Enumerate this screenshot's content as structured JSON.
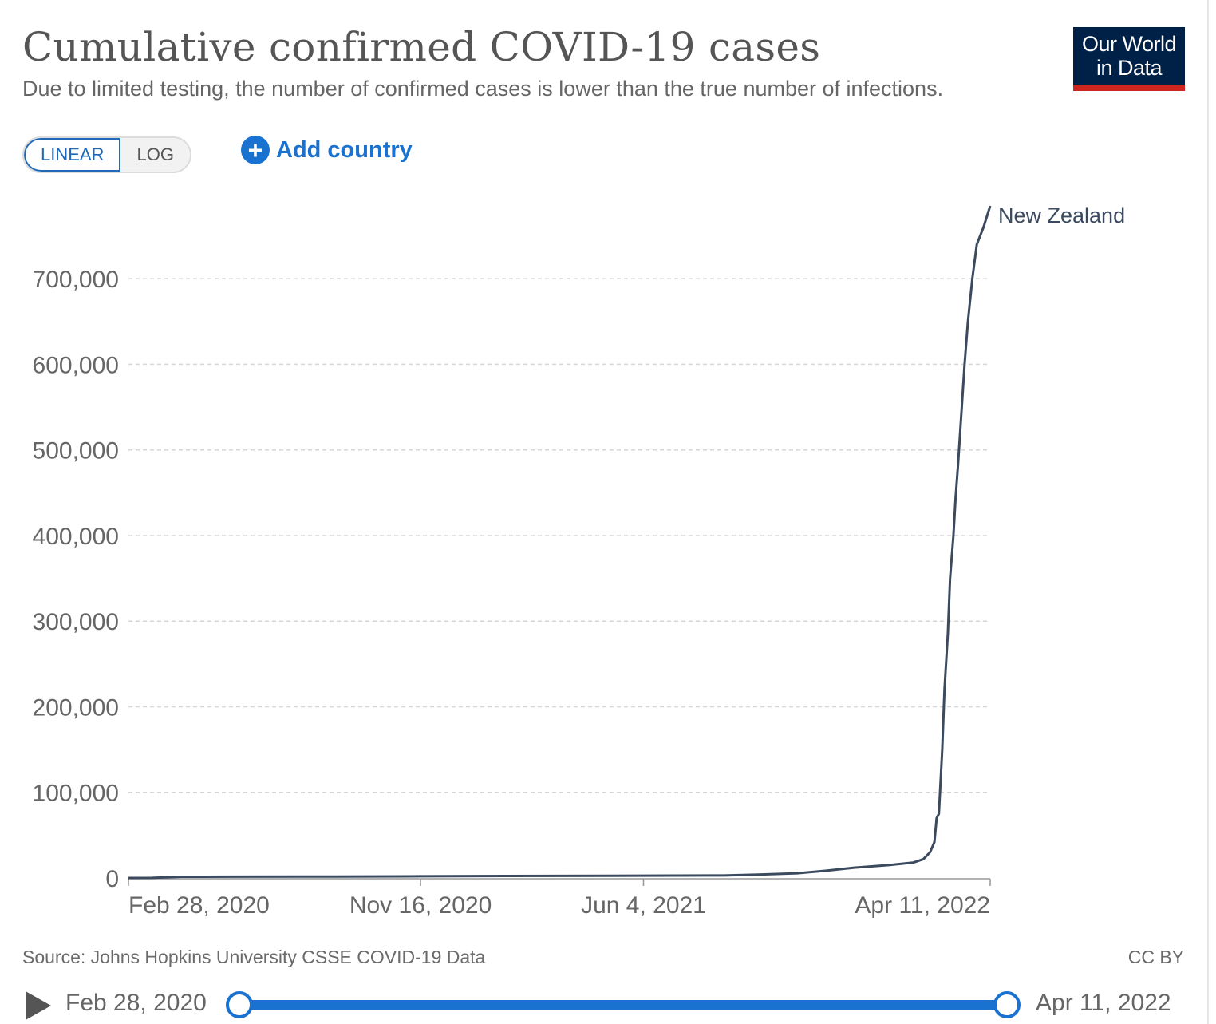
{
  "header": {
    "title": "Cumulative confirmed COVID-19 cases",
    "subtitle": "Due to limited testing, the number of confirmed cases is lower than the true number of infections.",
    "logo_line1": "Our World",
    "logo_line2": "in Data"
  },
  "controls": {
    "linear_label": "LINEAR",
    "log_label": "LOG",
    "active_scale": "LINEAR",
    "add_country_label": "Add country",
    "add_icon": "plus-circle-icon"
  },
  "footer": {
    "source": "Source: Johns Hopkins University CSSE COVID-19 Data",
    "license": "CC BY"
  },
  "timeline": {
    "start_label": "Feb 28, 2020",
    "end_label": "Apr 11, 2022",
    "play_icon": "play-icon",
    "range_start_fraction": 0,
    "range_end_fraction": 1
  },
  "colors": {
    "series": "#3b4a5e",
    "accent": "#1a72d0",
    "logo_bg": "#002147",
    "logo_stripe": "#ce261e"
  },
  "chart_data": {
    "type": "line",
    "title": "Cumulative confirmed COVID-19 cases",
    "xlabel": "",
    "ylabel": "",
    "xlim": [
      "2020-02-28",
      "2022-04-11"
    ],
    "ylim": [
      0,
      785000
    ],
    "y_ticks": [
      0,
      100000,
      200000,
      300000,
      400000,
      500000,
      600000,
      700000
    ],
    "y_tick_labels": [
      "0",
      "100,000",
      "200,000",
      "300,000",
      "400,000",
      "500,000",
      "600,000",
      "700,000"
    ],
    "x_tick_dates": [
      "2020-02-28",
      "2020-11-16",
      "2021-06-04",
      "2022-04-11"
    ],
    "x_tick_labels": [
      "Feb 28, 2020",
      "Nov 16, 2020",
      "Jun 4, 2021",
      "Apr 11, 2022"
    ],
    "grid": "horizontal dashed",
    "legend": "inline label at line end",
    "series": [
      {
        "name": "New Zealand",
        "color": "#3b4a5e",
        "points": [
          [
            "2020-02-28",
            0
          ],
          [
            "2020-03-20",
            50
          ],
          [
            "2020-04-15",
            1400
          ],
          [
            "2020-06-01",
            1500
          ],
          [
            "2020-09-01",
            1700
          ],
          [
            "2020-11-16",
            2000
          ],
          [
            "2021-02-01",
            2300
          ],
          [
            "2021-06-04",
            2700
          ],
          [
            "2021-08-15",
            2900
          ],
          [
            "2021-09-15",
            4000
          ],
          [
            "2021-10-20",
            5500
          ],
          [
            "2021-11-15",
            8500
          ],
          [
            "2021-12-10",
            12000
          ],
          [
            "2022-01-10",
            15000
          ],
          [
            "2022-02-01",
            18000
          ],
          [
            "2022-02-10",
            22000
          ],
          [
            "2022-02-16",
            30000
          ],
          [
            "2022-02-20",
            42000
          ],
          [
            "2022-02-22",
            70000
          ],
          [
            "2022-02-24",
            75000
          ],
          [
            "2022-02-27",
            150000
          ],
          [
            "2022-03-01",
            220000
          ],
          [
            "2022-03-04",
            285000
          ],
          [
            "2022-03-06",
            350000
          ],
          [
            "2022-03-09",
            400000
          ],
          [
            "2022-03-11",
            445000
          ],
          [
            "2022-03-13",
            480000
          ],
          [
            "2022-03-16",
            540000
          ],
          [
            "2022-03-19",
            600000
          ],
          [
            "2022-03-22",
            650000
          ],
          [
            "2022-03-26",
            700000
          ],
          [
            "2022-03-30",
            740000
          ],
          [
            "2022-04-05",
            760000
          ],
          [
            "2022-04-11",
            785000
          ]
        ]
      }
    ]
  }
}
